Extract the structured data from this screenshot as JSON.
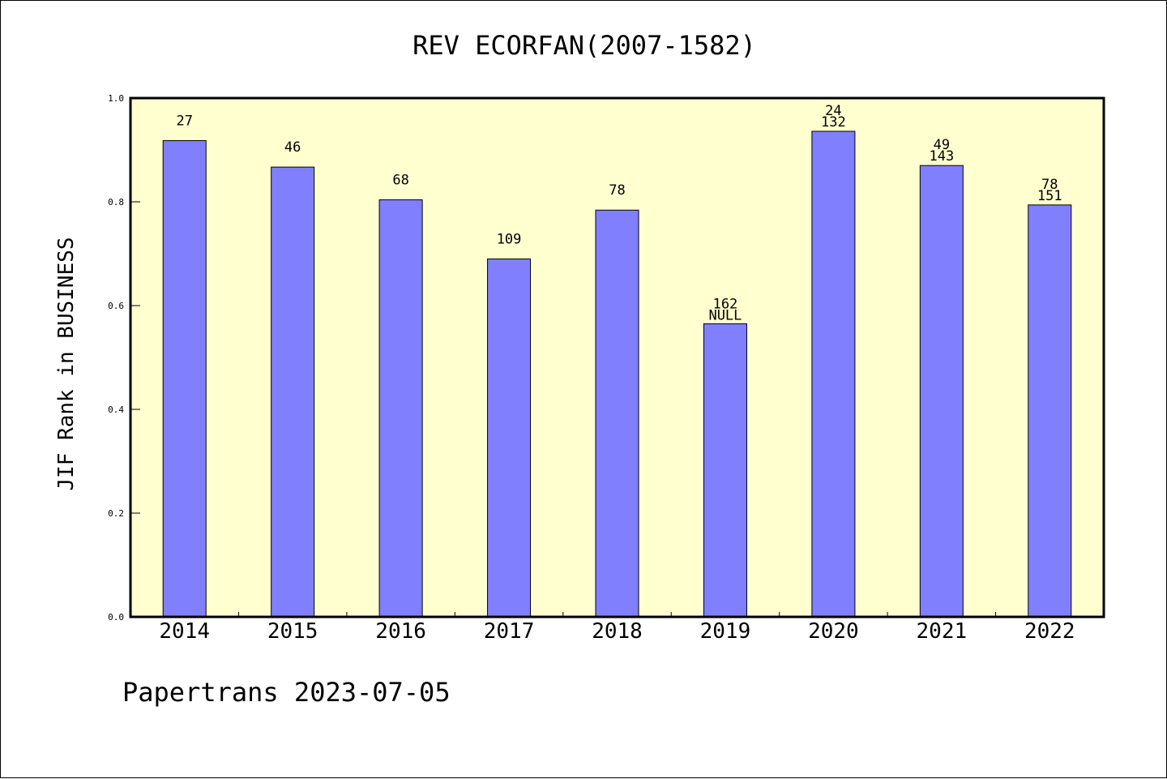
{
  "chart_data": {
    "type": "bar",
    "title": "REV ECORFAN(2007-1582)",
    "xlabel": "",
    "ylabel": "JIF Rank in BUSINESS",
    "categories": [
      "2014",
      "2015",
      "2016",
      "2017",
      "2018",
      "2019",
      "2020",
      "2021",
      "2022"
    ],
    "values": [
      0.918,
      0.867,
      0.804,
      0.69,
      0.784,
      0.565,
      0.936,
      0.87,
      0.794
    ],
    "labels_upper": [
      "",
      "",
      "",
      "",
      "",
      "",
      "24",
      "49",
      "78"
    ],
    "labels_lower": [
      "27",
      "46",
      "68",
      "109",
      "78",
      "162",
      "132",
      "143",
      "151"
    ],
    "labels_bottom_extra": [
      "",
      "",
      "",
      "",
      "",
      "NULL",
      "",
      "",
      ""
    ],
    "ylim": [
      0,
      1.0
    ],
    "yticks": [
      "0.0",
      "0.2",
      "0.4",
      "0.6",
      "0.8",
      "1.0"
    ],
    "grid": false,
    "colors": {
      "bar": "#8080ff",
      "plot_background": "#ffffd0",
      "axis": "#000000"
    }
  },
  "footer": "Papertrans 2023-07-05"
}
